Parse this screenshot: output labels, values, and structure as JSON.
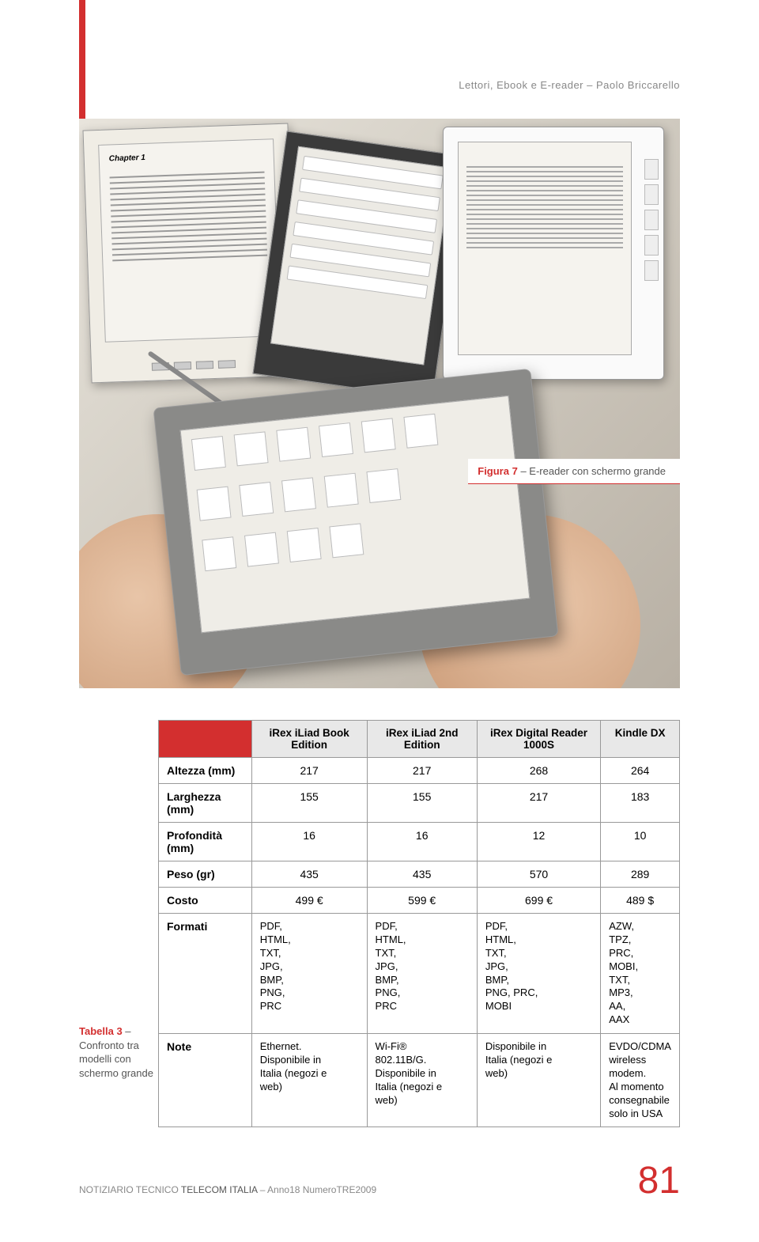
{
  "header": {
    "running_head": "Lettori, Ebook e E-reader – Paolo Briccarello"
  },
  "figure": {
    "label": "Figura 7",
    "sep": " – ",
    "caption": "E-reader con schermo grande"
  },
  "devices_photo": {
    "chapter_title": "Chapter 1"
  },
  "table": {
    "columns": [
      "iRex iLiad Book Edition",
      "iRex iLiad 2nd Edition",
      "iRex Digital Reader 1000S",
      "Kindle DX"
    ],
    "rows": [
      {
        "label": "Altezza (mm)",
        "values": [
          "217",
          "217",
          "268",
          "264"
        ],
        "type": "num"
      },
      {
        "label": "Larghezza (mm)",
        "values": [
          "155",
          "155",
          "217",
          "183"
        ],
        "type": "num"
      },
      {
        "label": "Profondità (mm)",
        "values": [
          "16",
          "16",
          "12",
          "10"
        ],
        "type": "num"
      },
      {
        "label": "Peso  (gr)",
        "values": [
          "435",
          "435",
          "570",
          "289"
        ],
        "type": "num"
      },
      {
        "label": "Costo",
        "values": [
          "499 €",
          "599 €",
          "699 €",
          "489 $"
        ],
        "type": "num"
      },
      {
        "label": "Formati",
        "values": [
          "PDF,\nHTML,\nTXT,\nJPG,\nBMP,\nPNG,\nPRC",
          "PDF,\nHTML,\nTXT,\nJPG,\nBMP,\nPNG,\nPRC",
          "PDF,\nHTML,\nTXT,\nJPG,\nBMP,\nPNG, PRC,\nMOBI",
          "AZW,\nTPZ,\nPRC,\nMOBI,\nTXT,\nMP3,\nAA,\nAAX"
        ],
        "type": "txt"
      },
      {
        "label": "Note",
        "values": [
          "Ethernet.\nDisponibile in\nItalia (negozi e\nweb)",
          "Wi-Fi®\n802.11B/G.\nDisponibile in\nItalia (negozi e\nweb)",
          "Disponibile in\nItalia (negozi e\nweb)",
          "EVDO/CDMA\nwireless\nmodem.\nAl momento\nconsegnabile\nsolo in USA"
        ],
        "type": "txt"
      }
    ],
    "styling": {
      "header_bg": "#e8e8e8",
      "corner_bg": "#d32f2f",
      "border_color": "#999999",
      "font_size_pt": 10,
      "label_bold": true
    }
  },
  "table_caption": {
    "label": "Tabella 3",
    "sep": " – ",
    "caption": "Confronto tra modelli con schermo grande"
  },
  "footer": {
    "text_prefix": "NOTIZIARIO TECNICO ",
    "text_strong": "TELECOM ITALIA",
    "text_suffix": " – Anno18 NumeroTRE2009",
    "page_number": "81"
  },
  "colors": {
    "accent_red": "#d32f2f",
    "muted_gray": "#888888",
    "photo_bg_light": "#e8e4dc",
    "photo_bg_dark": "#b8b0a4"
  }
}
